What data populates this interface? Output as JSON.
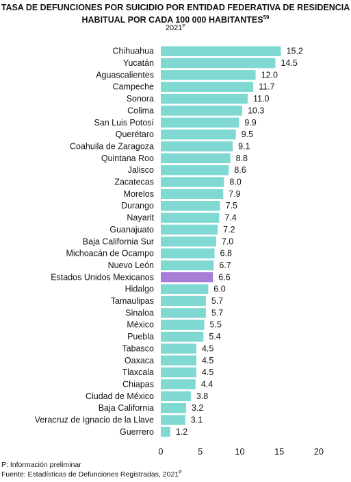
{
  "header": {
    "title_line1": "Tasa de defunciones por suicidio por entidad federativa de residencia",
    "title_line2": "habitual por cada 100 000 habitantes",
    "title_superscript": "59",
    "year": "2021",
    "year_superscript": "P"
  },
  "chart_data": {
    "type": "bar",
    "orientation": "horizontal",
    "categories": [
      "Chihuahua",
      "Yucatán",
      "Aguascalientes",
      "Campeche",
      "Sonora",
      "Colima",
      "San Luis Potosí",
      "Querétaro",
      "Coahuila de Zaragoza",
      "Quintana Roo",
      "Jalisco",
      "Zacatecas",
      "Morelos",
      "Durango",
      "Nayarit",
      "Guanajuato",
      "Baja California Sur",
      "Michoacán de Ocampo",
      "Nuevo León",
      "Estados Unidos Mexicanos",
      "Hidalgo",
      "Tamaulipas",
      "Sinaloa",
      "México",
      "Puebla",
      "Tabasco",
      "Oaxaca",
      "Tlaxcala",
      "Chiapas",
      "Ciudad de México",
      "Baja California",
      "Veracruz de Ignacio de la Llave",
      "Guerrero"
    ],
    "values": [
      15.2,
      14.5,
      12.0,
      11.7,
      11.0,
      10.3,
      9.9,
      9.5,
      9.1,
      8.8,
      8.6,
      8.0,
      7.9,
      7.5,
      7.4,
      7.2,
      7.0,
      6.8,
      6.7,
      6.6,
      6.0,
      5.7,
      5.7,
      5.5,
      5.4,
      4.5,
      4.5,
      4.5,
      4.4,
      3.8,
      3.2,
      3.1,
      1.2
    ],
    "value_labels": [
      "15.2",
      "14.5",
      "12.0",
      "11.7",
      "11.0",
      "10.3",
      "9.9",
      "9.5",
      "9.1",
      "8.8",
      "8.6",
      "8.0",
      "7.9",
      "7.5",
      "7.4",
      "7.2",
      "7.0",
      "6.8",
      "6.7",
      "6.6",
      "6.0",
      "5.7",
      "5.7",
      "5.5",
      "5.4",
      "4.5",
      "4.5",
      "4.5",
      "4.4",
      "3.8",
      "3.2",
      "3.1",
      "1.2"
    ],
    "xlim": [
      0,
      20
    ],
    "xticks": [
      "0",
      "5",
      "10",
      "15",
      "20"
    ],
    "highlight_category": "Estados Unidos Mexicanos",
    "colors": {
      "bar": "#7fd9d2",
      "highlight": "#a77dd6"
    },
    "grid": false
  },
  "footnotes": {
    "preliminary": "P: Información preliminar",
    "source": "Fuente: Estadísticas de Defunciones Registradas, 2021",
    "source_superscript": "P"
  }
}
